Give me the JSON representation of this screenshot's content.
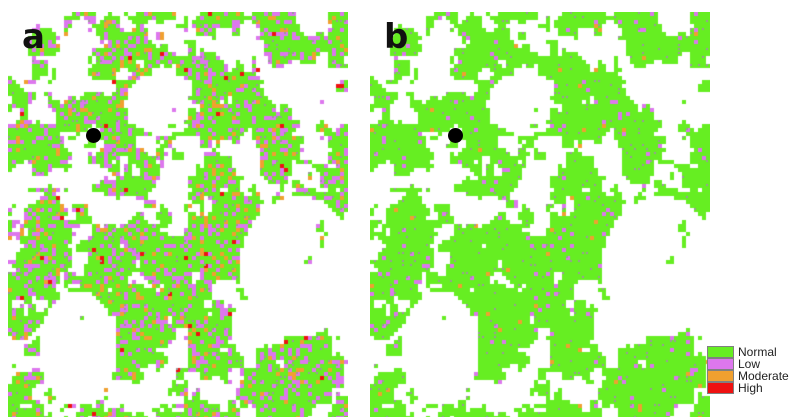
{
  "panels": [
    {
      "id": "a",
      "letter": "a",
      "weights": {
        "Normal": 0.7,
        "Low": 0.2,
        "Moderate": 0.06,
        "High": 0.01
      }
    },
    {
      "id": "b",
      "letter": "b",
      "weights": {
        "Normal": 0.96,
        "Low": 0.03,
        "Moderate": 0.01,
        "High": 0.0
      }
    }
  ],
  "legend": {
    "items": [
      {
        "label": "Normal",
        "color": "#66ee22"
      },
      {
        "label": "Low",
        "color": "#dd77ee"
      },
      {
        "label": "Moderate",
        "color": "#f0a030"
      },
      {
        "label": "High",
        "color": "#ee1111"
      }
    ]
  }
}
